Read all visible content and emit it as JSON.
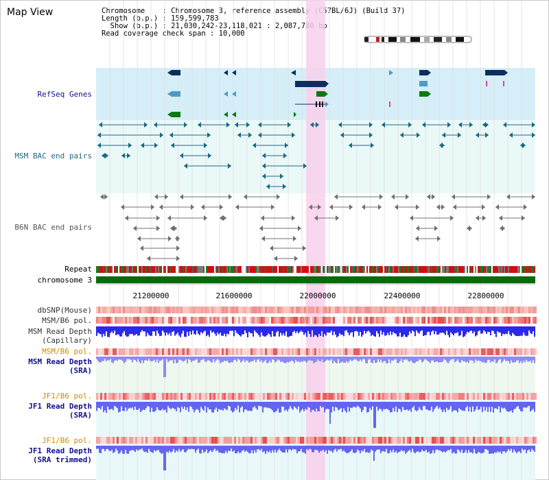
{
  "header": {
    "title": "Map View",
    "info_lines": [
      "Chromosome    : Chromosome 3, reference assembly (C57BL/6J) (Build 37)",
      "Length (b.p.) : 159,599,783",
      "  Show (b.p.) : 21,030,242-23,118,021 : 2,087,780 bp",
      "Read coverage check span : 10,000"
    ]
  },
  "axis": {
    "ticks": [
      "21200000",
      "21600000",
      "22000000",
      "22400000",
      "22800000"
    ]
  },
  "tracks": {
    "refseq": "RefSeq Genes",
    "msm_bac": "MSM BAC end pairs",
    "b6n_bac": "B6N BAC end pairs",
    "repeat": "Repeat",
    "chromosome": "chromosome 3",
    "dbsnp": "dbSNP(Mouse)",
    "msm_b6_pol_1": "MSM/B6 pol.",
    "msm_depth_cap_1": "MSM Read Depth",
    "msm_depth_cap_2": "(Capillary)",
    "msm_b6_pol_2": "MSM/B6 pol.",
    "msm_depth_sra_1": "MSM Read Depth",
    "msm_depth_sra_2": "(SRA)",
    "jf1_pol_1": "JF1/B6 pol.",
    "jf1_depth_sra_1": "JF1 Read Depth",
    "jf1_depth_sra_2": "(SRA)",
    "jf1_pol_2": "JF1/B6 pol.",
    "jf1_depth_trim_1": "JF1 Read Depth",
    "jf1_depth_trim_2": "(SRA trimmed)"
  },
  "colors": {
    "refseq_bg": "#d6eef8",
    "bac_bg": "#eaf8f8",
    "highlight": "#f8d0ec",
    "gene_dark": "#0d2d5e",
    "gene_light": "#4a9cc8",
    "gene_green": "#0a7a12",
    "msm_bac": "#1a6a82",
    "b6n_bac": "#707070",
    "chromosome": "#0a6a0a",
    "depth": "#3030e8",
    "depth_light": "#8888f0",
    "label_dark": "#000040",
    "label_orange": "#d08a00",
    "label_blue": "#101090"
  }
}
